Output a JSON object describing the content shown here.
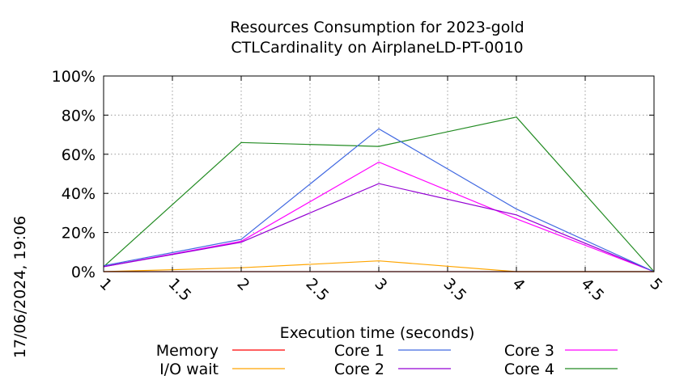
{
  "chart_data": {
    "type": "line",
    "title": [
      "Resources Consumption for 2023-gold",
      "CTLCardinality on AirplaneLD-PT-0010"
    ],
    "xlabel": "Execution time (seconds)",
    "ylabel": "",
    "xlim": [
      1,
      5
    ],
    "ylim": [
      0,
      100
    ],
    "x_ticks": [
      "1",
      "1.5",
      "2",
      "2.5",
      "3",
      "3.5",
      "4",
      "4.5",
      "5"
    ],
    "y_ticks": [
      "0%",
      "20%",
      "40%",
      "60%",
      "80%",
      "100%"
    ],
    "grid": true,
    "legend_position": "bottom",
    "timestamp": "17/06/2024, 19:06",
    "series": [
      {
        "name": "Memory",
        "color": "#ff0000",
        "x": [
          1,
          2,
          3,
          4,
          5
        ],
        "y": [
          0,
          0,
          0,
          0,
          0
        ]
      },
      {
        "name": "I/O wait",
        "color": "#ffa500",
        "x": [
          1,
          2,
          3,
          4,
          5
        ],
        "y": [
          0,
          2,
          5.5,
          0,
          0
        ]
      },
      {
        "name": "Core 1",
        "color": "#4169e1",
        "x": [
          1,
          2,
          3,
          4,
          5
        ],
        "y": [
          3,
          16.5,
          73,
          32,
          0
        ]
      },
      {
        "name": "Core 2",
        "color": "#9400d3",
        "x": [
          1,
          2,
          3,
          4,
          5
        ],
        "y": [
          2.5,
          15,
          45,
          29,
          0
        ]
      },
      {
        "name": "Core 3",
        "color": "#ff00ff",
        "x": [
          1,
          2,
          3,
          4,
          5
        ],
        "y": [
          2.5,
          15.5,
          56,
          27,
          0
        ]
      },
      {
        "name": "Core 4",
        "color": "#228b22",
        "x": [
          1,
          2,
          3,
          4,
          5
        ],
        "y": [
          2.5,
          66,
          64,
          79,
          0
        ]
      }
    ]
  }
}
